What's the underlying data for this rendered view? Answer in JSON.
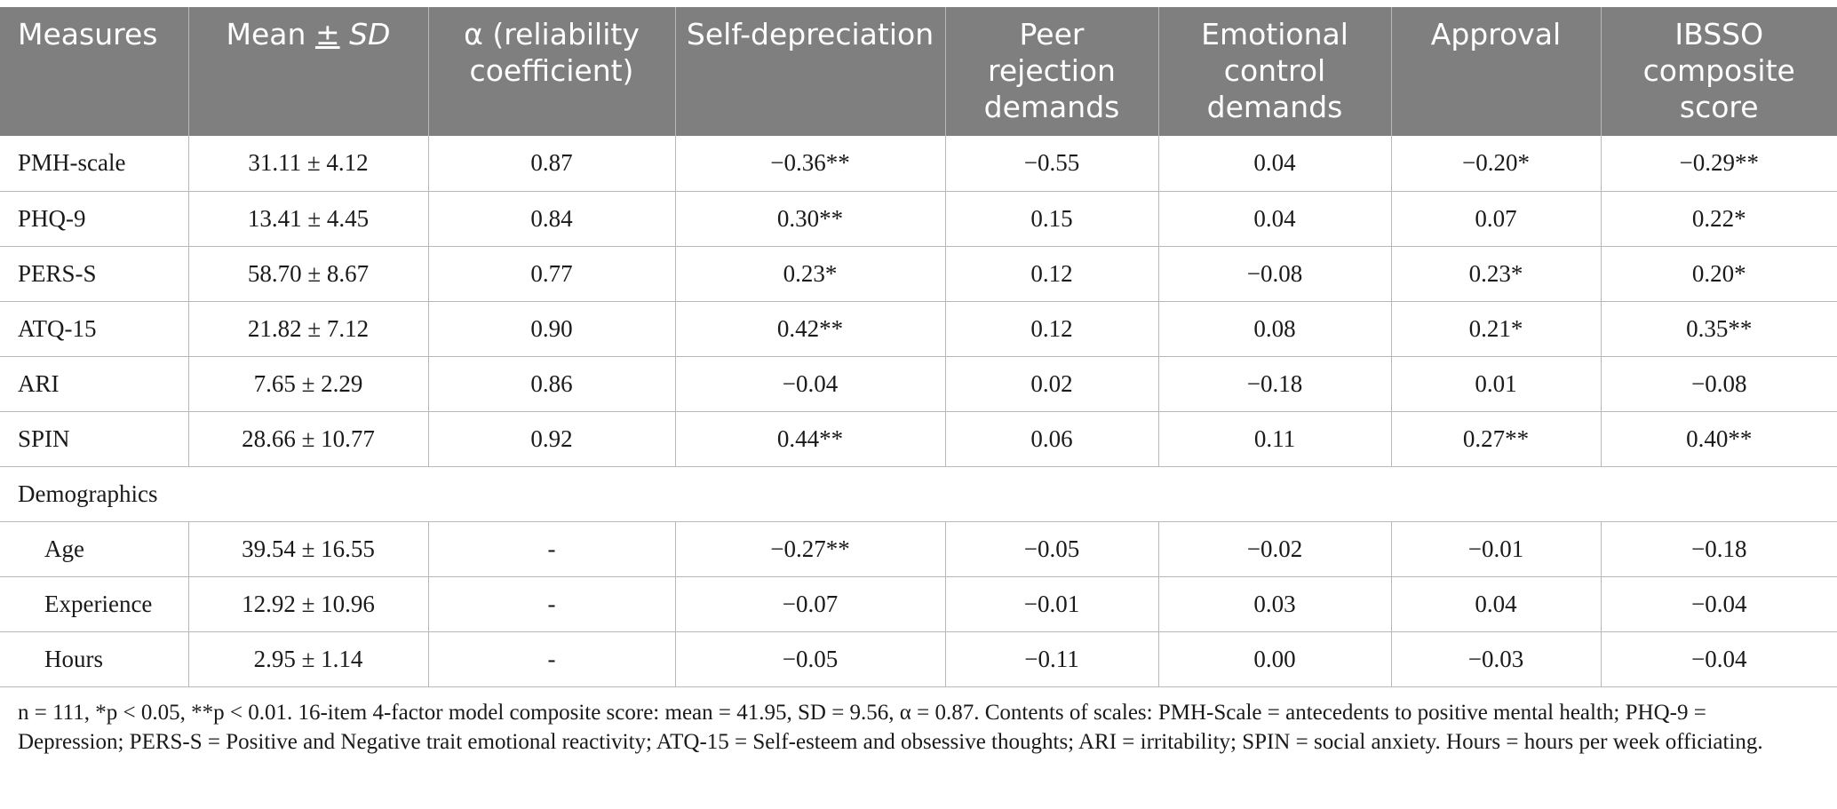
{
  "table": {
    "headers": [
      "Measures",
      "Mean ± SD",
      "α (reliability coefficient)",
      "Self-depreciation",
      "Peer rejection demands",
      "Emotional control demands",
      "Approval",
      "IBSSO composite score"
    ],
    "rows": [
      [
        "PMH-scale",
        "31.11 ± 4.12",
        "0.87",
        "−0.36**",
        "−0.55",
        "0.04",
        "−0.20*",
        "−0.29**"
      ],
      [
        "PHQ-9",
        "13.41 ± 4.45",
        "0.84",
        "0.30**",
        "0.15",
        "0.04",
        "0.07",
        "0.22*"
      ],
      [
        "PERS-S",
        "58.70 ± 8.67",
        "0.77",
        "0.23*",
        "0.12",
        "−0.08",
        "0.23*",
        "0.20*"
      ],
      [
        "ATQ-15",
        "21.82 ± 7.12",
        "0.90",
        "0.42**",
        "0.12",
        "0.08",
        "0.21*",
        "0.35**"
      ],
      [
        "ARI",
        "7.65 ± 2.29",
        "0.86",
        "−0.04",
        "0.02",
        "−0.18",
        "0.01",
        "−0.08"
      ],
      [
        "SPIN",
        "28.66 ± 10.77",
        "0.92",
        "0.44**",
        "0.06",
        "0.11",
        "0.27**",
        "0.40**"
      ]
    ],
    "section_label": "Demographics",
    "demo_rows": [
      [
        "Age",
        "39.54 ± 16.55",
        "-",
        "−0.27**",
        "−0.05",
        "−0.02",
        "−0.01",
        "−0.18"
      ],
      [
        "Experience",
        "12.92 ± 10.96",
        "-",
        "−0.07",
        "−0.01",
        "0.03",
        "0.04",
        "−0.04"
      ],
      [
        "Hours",
        "2.95 ± 1.14",
        "-",
        "−0.05",
        "−0.11",
        "0.00",
        "−0.03",
        "−0.04"
      ]
    ]
  },
  "footnote": "n = 111, *p < 0.05, **p < 0.01. 16-item 4-factor model composite score: mean = 41.95, SD = 9.56, α = 0.87. Contents of scales: PMH-Scale = antecedents to positive mental health; PHQ-9 = Depression; PERS-S = Positive and Negative trait emotional reactivity; ATQ-15 = Self-esteem and obsessive thoughts; ARI = irritability; SPIN = social anxiety. Hours = hours per week officiating."
}
